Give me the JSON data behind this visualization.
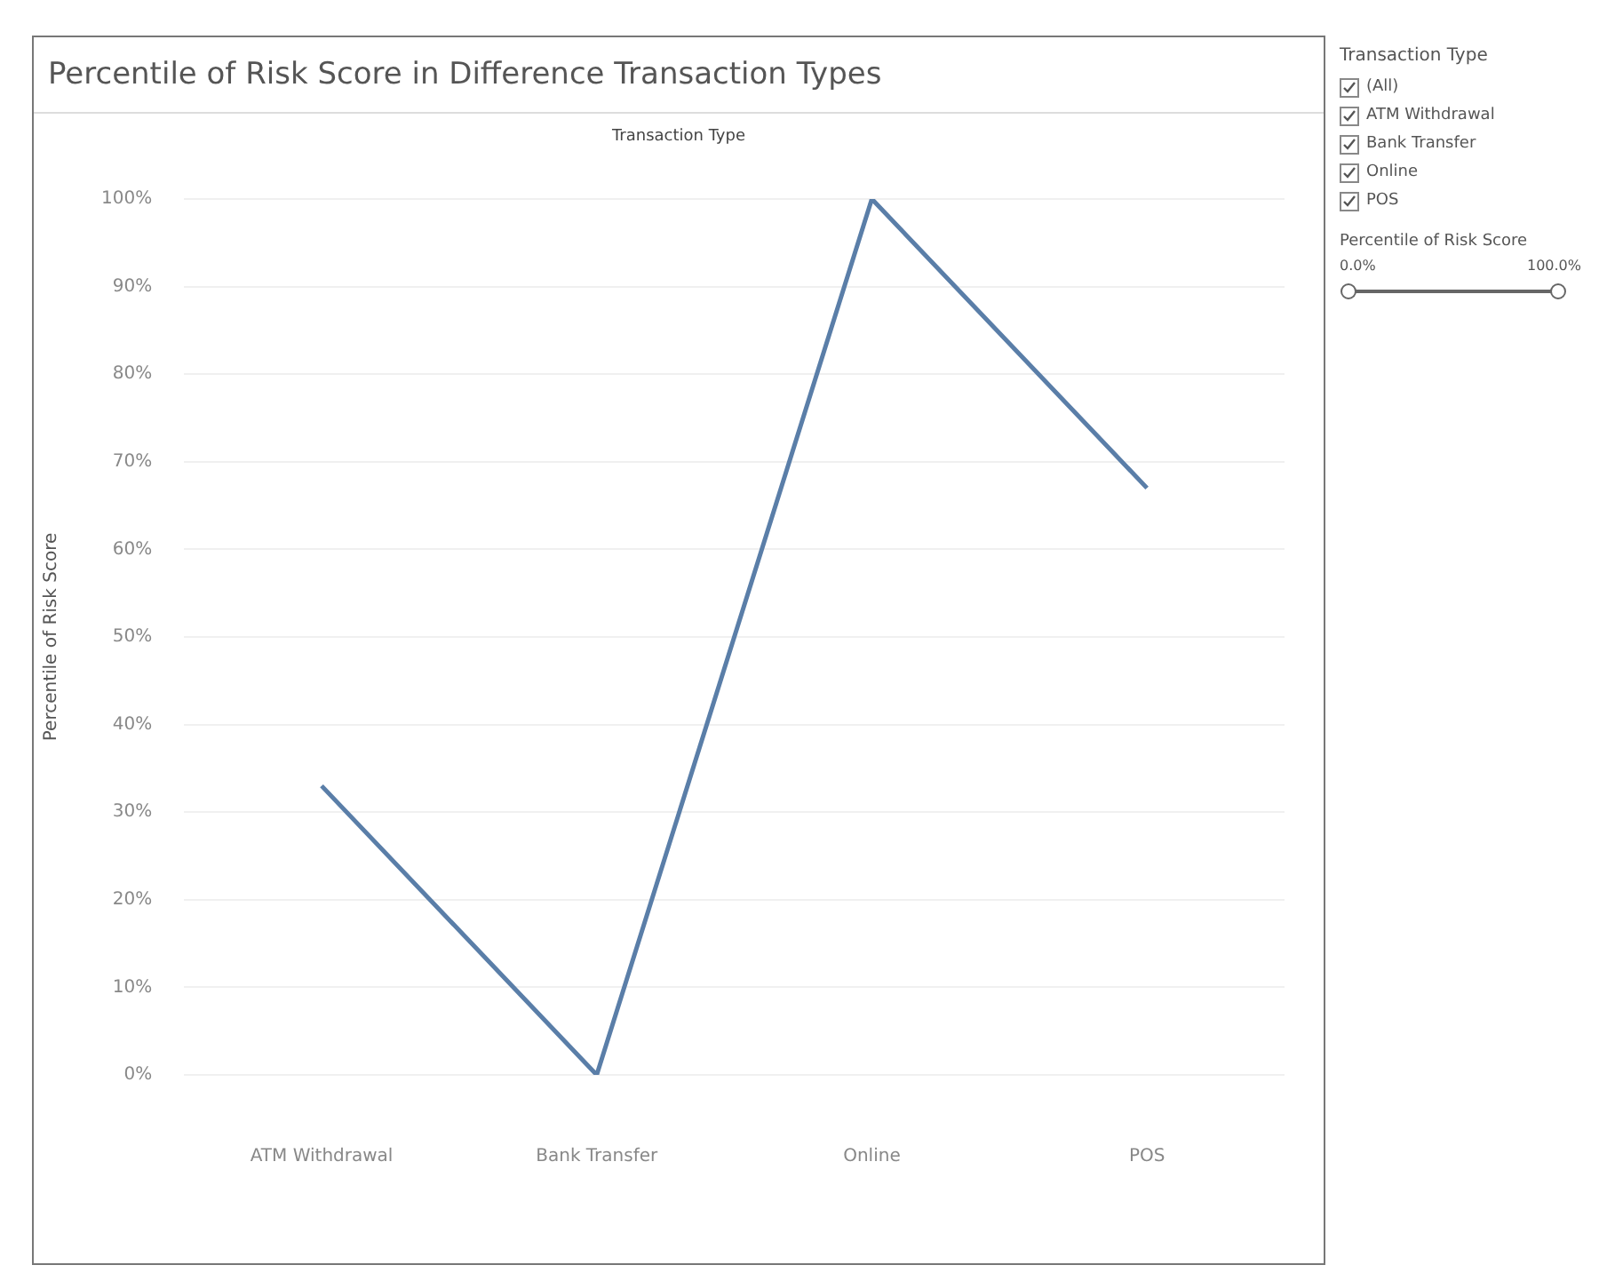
{
  "chart_data": {
    "type": "line",
    "title": "Percentile of Risk Score  in Difference Transaction Types",
    "xlabel": "Transaction Type",
    "ylabel": "Percentile of Risk Score",
    "categories": [
      "ATM Withdrawal",
      "Bank Transfer",
      "Online",
      "POS"
    ],
    "series": [
      {
        "color": "#5a7ea8",
        "values": [
          33,
          0,
          100,
          67
        ]
      }
    ],
    "ylim": [
      0,
      100
    ],
    "yticks": [
      {
        "value": 0,
        "label": "0%"
      },
      {
        "value": 10,
        "label": "10%"
      },
      {
        "value": 20,
        "label": "20%"
      },
      {
        "value": 30,
        "label": "30%"
      },
      {
        "value": 40,
        "label": "40%"
      },
      {
        "value": 50,
        "label": "50%"
      },
      {
        "value": 60,
        "label": "60%"
      },
      {
        "value": 70,
        "label": "70%"
      },
      {
        "value": 80,
        "label": "80%"
      },
      {
        "value": 90,
        "label": "90%"
      },
      {
        "value": 100,
        "label": "100%"
      }
    ],
    "grid": "y",
    "marker": "none",
    "line_style": "solid",
    "legend": false,
    "annotations": [
      "Transaction Type",
      "(All)",
      "ATM Withdrawal",
      "Bank Transfer",
      "Online",
      "POS",
      "Percentile of Risk Score",
      "0.0%",
      "100.0%"
    ]
  }
}
